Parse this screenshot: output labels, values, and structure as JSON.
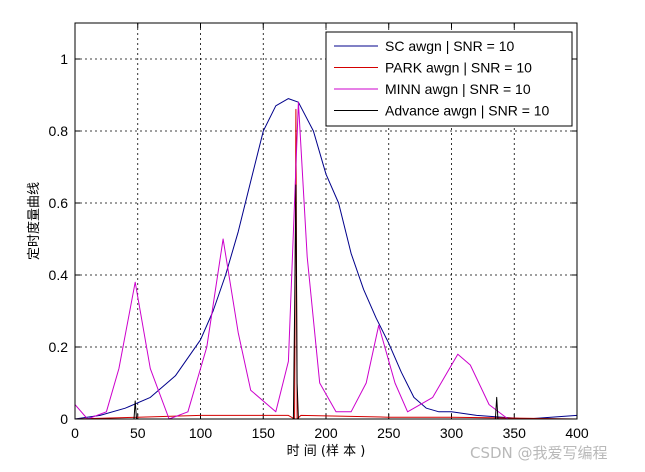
{
  "chart_data": {
    "type": "line",
    "title": "",
    "xlabel": "时 间 (样 本 )",
    "ylabel": "定时度量曲线",
    "xlim": [
      0,
      400
    ],
    "ylim": [
      0,
      1.1
    ],
    "xticks": [
      0,
      50,
      100,
      150,
      200,
      250,
      300,
      350,
      400
    ],
    "yticks": [
      0,
      0.2,
      0.4,
      0.6,
      0.8,
      1
    ],
    "xtick_labels": [
      "0",
      "50",
      "100",
      "150",
      "200",
      "250",
      "300",
      "350",
      "400"
    ],
    "ytick_labels": [
      "0",
      "0.2",
      "0.4",
      "0.6",
      "0.8",
      "1"
    ],
    "grid": true,
    "legend_position": "top-right",
    "series": [
      {
        "name": "SC      awgn | SNR = 10",
        "color": "#00008b",
        "points": [
          [
            0,
            0.0
          ],
          [
            20,
            0.01
          ],
          [
            40,
            0.03
          ],
          [
            60,
            0.06
          ],
          [
            80,
            0.12
          ],
          [
            100,
            0.22
          ],
          [
            110,
            0.3
          ],
          [
            120,
            0.4
          ],
          [
            130,
            0.52
          ],
          [
            140,
            0.66
          ],
          [
            150,
            0.8
          ],
          [
            160,
            0.87
          ],
          [
            170,
            0.89
          ],
          [
            178,
            0.88
          ],
          [
            190,
            0.8
          ],
          [
            200,
            0.68
          ],
          [
            210,
            0.6
          ],
          [
            220,
            0.46
          ],
          [
            230,
            0.36
          ],
          [
            240,
            0.28
          ],
          [
            250,
            0.21
          ],
          [
            260,
            0.13
          ],
          [
            270,
            0.06
          ],
          [
            280,
            0.03
          ],
          [
            290,
            0.02
          ],
          [
            300,
            0.02
          ],
          [
            320,
            0.01
          ],
          [
            360,
            0.0
          ],
          [
            400,
            0.01
          ]
        ]
      },
      {
        "name": "PARK  awgn | SNR = 10",
        "color": "#d40000",
        "points": [
          [
            0,
            0.0
          ],
          [
            50,
            0.005
          ],
          [
            100,
            0.01
          ],
          [
            150,
            0.01
          ],
          [
            170,
            0.01
          ],
          [
            175,
            0.0
          ],
          [
            176,
            0.86
          ],
          [
            177,
            0.0
          ],
          [
            180,
            0.01
          ],
          [
            250,
            0.005
          ],
          [
            300,
            0.005
          ],
          [
            400,
            0.0
          ]
        ]
      },
      {
        "name": "MINN  awgn | SNR = 10",
        "color": "#cc00cc",
        "points": [
          [
            0,
            0.04
          ],
          [
            10,
            0.0
          ],
          [
            25,
            0.02
          ],
          [
            35,
            0.14
          ],
          [
            48,
            0.38
          ],
          [
            60,
            0.14
          ],
          [
            75,
            0.0
          ],
          [
            90,
            0.02
          ],
          [
            105,
            0.2
          ],
          [
            118,
            0.5
          ],
          [
            130,
            0.24
          ],
          [
            140,
            0.08
          ],
          [
            160,
            0.02
          ],
          [
            170,
            0.16
          ],
          [
            178,
            0.88
          ],
          [
            185,
            0.45
          ],
          [
            195,
            0.1
          ],
          [
            208,
            0.02
          ],
          [
            220,
            0.02
          ],
          [
            232,
            0.1
          ],
          [
            242,
            0.26
          ],
          [
            255,
            0.1
          ],
          [
            265,
            0.02
          ],
          [
            285,
            0.06
          ],
          [
            305,
            0.18
          ],
          [
            315,
            0.15
          ],
          [
            330,
            0.04
          ],
          [
            345,
            0.0
          ],
          [
            400,
            0.0
          ]
        ]
      },
      {
        "name": "Advance  awgn | SNR = 10",
        "color": "#000000",
        "points": [
          [
            0,
            0.0
          ],
          [
            47,
            0.0
          ],
          [
            48,
            0.05
          ],
          [
            49,
            0.0
          ],
          [
            174,
            0.0
          ],
          [
            175,
            0.3
          ],
          [
            176,
            0.65
          ],
          [
            177,
            0.1
          ],
          [
            178,
            0.0
          ],
          [
            335,
            0.0
          ],
          [
            336,
            0.06
          ],
          [
            337,
            0.0
          ],
          [
            400,
            0.0
          ]
        ]
      }
    ]
  },
  "watermark": "CSDN @我爱写编程"
}
